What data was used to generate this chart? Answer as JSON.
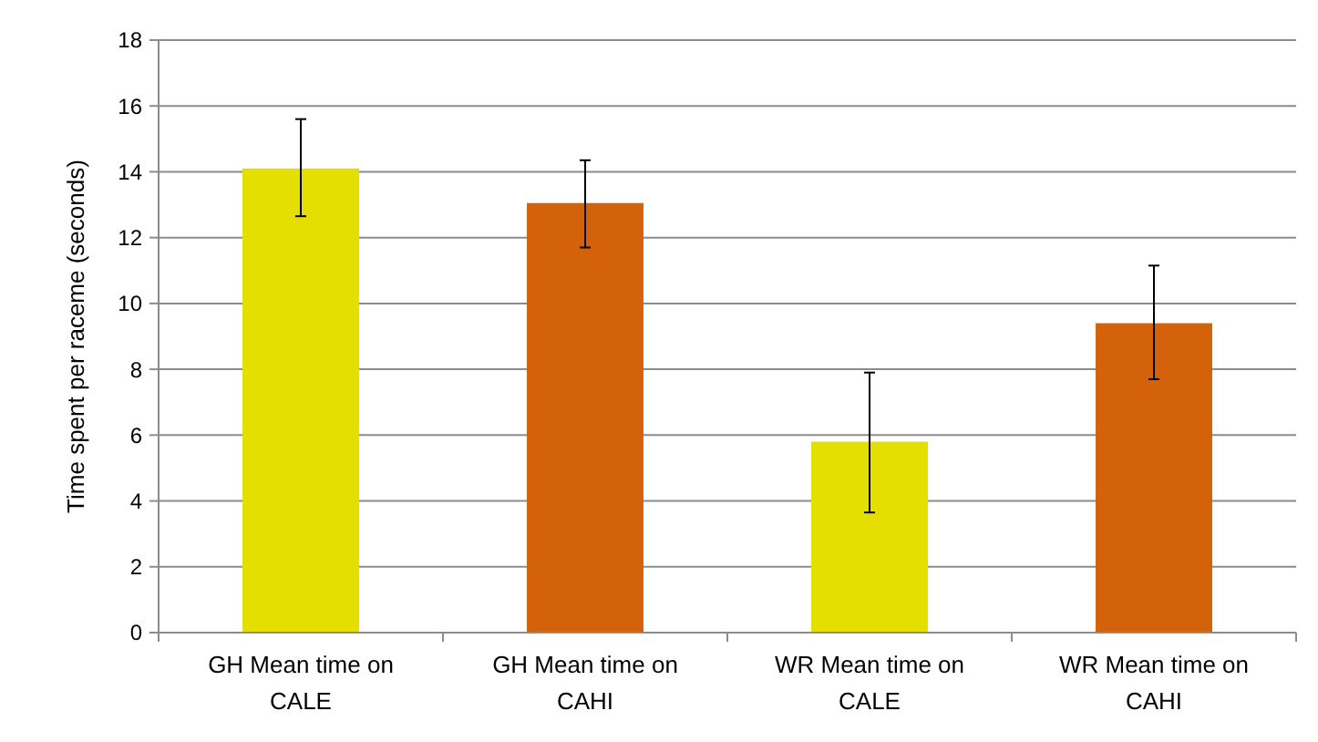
{
  "chart_data": {
    "type": "bar",
    "ylabel": "Time spent per raceme (seconds)",
    "categories": [
      "GH Mean time on CALE",
      "GH Mean time on CAHI",
      "WR Mean time on CALE",
      "WR Mean time on CAHI"
    ],
    "values": [
      14.1,
      13.05,
      5.8,
      9.4
    ],
    "colors": [
      "#e4df00",
      "#d4620a",
      "#e4df00",
      "#d4620a"
    ],
    "errors": [
      [
        12.65,
        15.6
      ],
      [
        11.7,
        14.35
      ],
      [
        3.65,
        7.9
      ],
      [
        7.7,
        11.15
      ]
    ],
    "ylim": [
      0,
      18
    ],
    "yticks": [
      0,
      2,
      4,
      6,
      8,
      10,
      12,
      14,
      16,
      18
    ],
    "grid": "y"
  }
}
